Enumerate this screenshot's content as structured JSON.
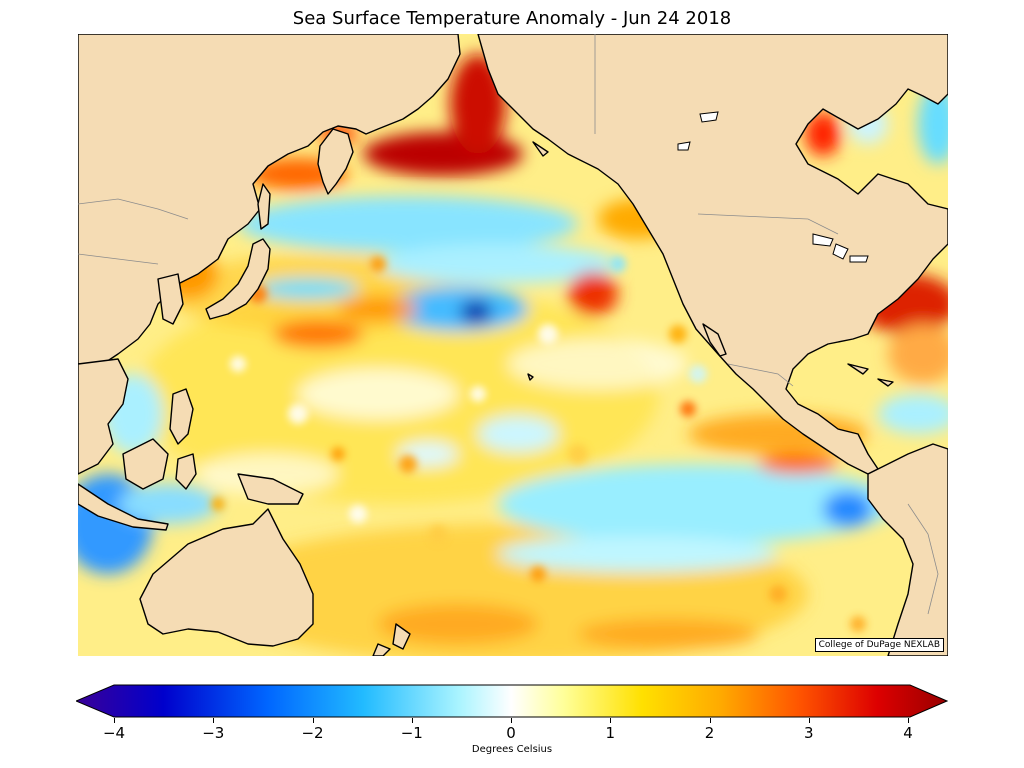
{
  "title": "Sea Surface Temperature Anomaly - Jun 24 2018",
  "credit": "College of DuPage NEXLAB",
  "colorbar": {
    "label": "Degrees Celsius",
    "min": -4,
    "max": 4,
    "ticks": [
      "−4",
      "−3",
      "−2",
      "−1",
      "0",
      "1",
      "2",
      "3",
      "4"
    ],
    "colors": [
      "#3a0098",
      "#0000cc",
      "#0066ff",
      "#22bbff",
      "#aaf4ff",
      "#ffffff",
      "#ffff99",
      "#ffe000",
      "#ffaa00",
      "#ff5500",
      "#dd0000",
      "#990000"
    ]
  },
  "map": {
    "region": "Pacific Ocean",
    "land_color": "#f5dcb4",
    "features": [
      {
        "name": "warm-bering-sea",
        "anomaly": 3.5
      },
      {
        "name": "warm-okhotsk-coast",
        "anomaly": 2.5
      },
      {
        "name": "cool-north-pacific-band",
        "anomaly": -1.5
      },
      {
        "name": "cool-central-blob",
        "anomaly": -3
      },
      {
        "name": "warm-northeast-pacific",
        "anomaly": 2
      },
      {
        "name": "cool-eastern-equatorial",
        "anomaly": -1
      },
      {
        "name": "cool-indian-ocean",
        "anomaly": -2
      },
      {
        "name": "warm-gulf-stream",
        "anomaly": 3
      }
    ]
  }
}
